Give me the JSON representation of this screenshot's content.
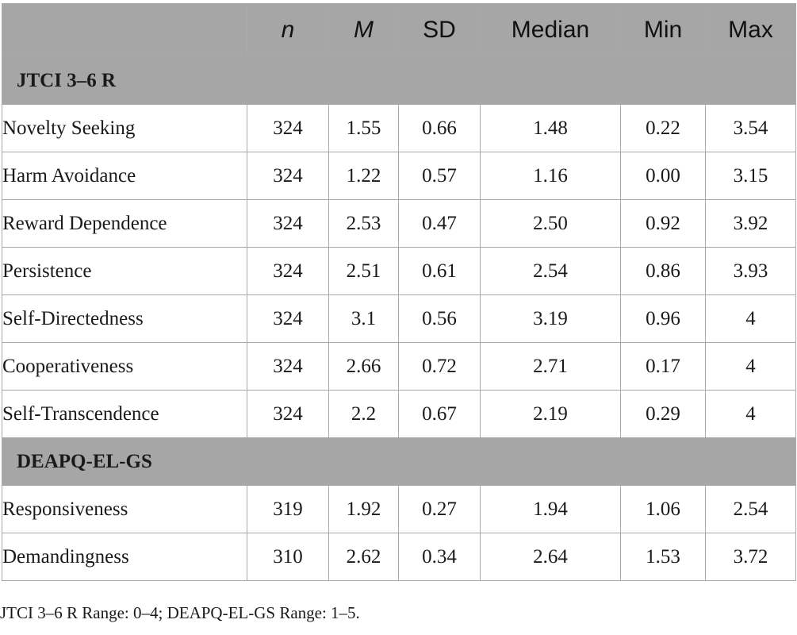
{
  "headers": [
    "",
    "n",
    "M",
    "SD",
    "Median",
    "Min",
    "Max"
  ],
  "sections": [
    {
      "title": "JTCI 3–6 R",
      "rows": [
        {
          "label": "Novelty Seeking",
          "values": [
            "324",
            "1.55",
            "0.66",
            "1.48",
            "0.22",
            "3.54"
          ]
        },
        {
          "label": "Harm Avoidance",
          "values": [
            "324",
            "1.22",
            "0.57",
            "1.16",
            "0.00",
            "3.15"
          ]
        },
        {
          "label": "Reward Dependence",
          "values": [
            "324",
            "2.53",
            "0.47",
            "2.50",
            "0.92",
            "3.92"
          ]
        },
        {
          "label": "Persistence",
          "values": [
            "324",
            "2.51",
            "0.61",
            "2.54",
            "0.86",
            "3.93"
          ]
        },
        {
          "label": "Self-Directedness",
          "values": [
            "324",
            "3.1",
            "0.56",
            "3.19",
            "0.96",
            "4"
          ]
        },
        {
          "label": "Cooperativeness",
          "values": [
            "324",
            "2.66",
            "0.72",
            "2.71",
            "0.17",
            "4"
          ]
        },
        {
          "label": "Self-Transcendence",
          "values": [
            "324",
            "2.2",
            "0.67",
            "2.19",
            "0.29",
            "4"
          ]
        }
      ]
    },
    {
      "title": "DEAPQ-EL-GS",
      "rows": [
        {
          "label": "Responsiveness",
          "values": [
            "319",
            "1.92",
            "0.27",
            "1.94",
            "1.06",
            "2.54"
          ]
        },
        {
          "label": "Demandingness",
          "values": [
            "310",
            "2.62",
            "0.34",
            "2.64",
            "1.53",
            "3.72"
          ]
        }
      ]
    }
  ],
  "footnote": "JTCI 3–6 R Range: 0–4; DEAPQ-EL-GS Range: 1–5."
}
